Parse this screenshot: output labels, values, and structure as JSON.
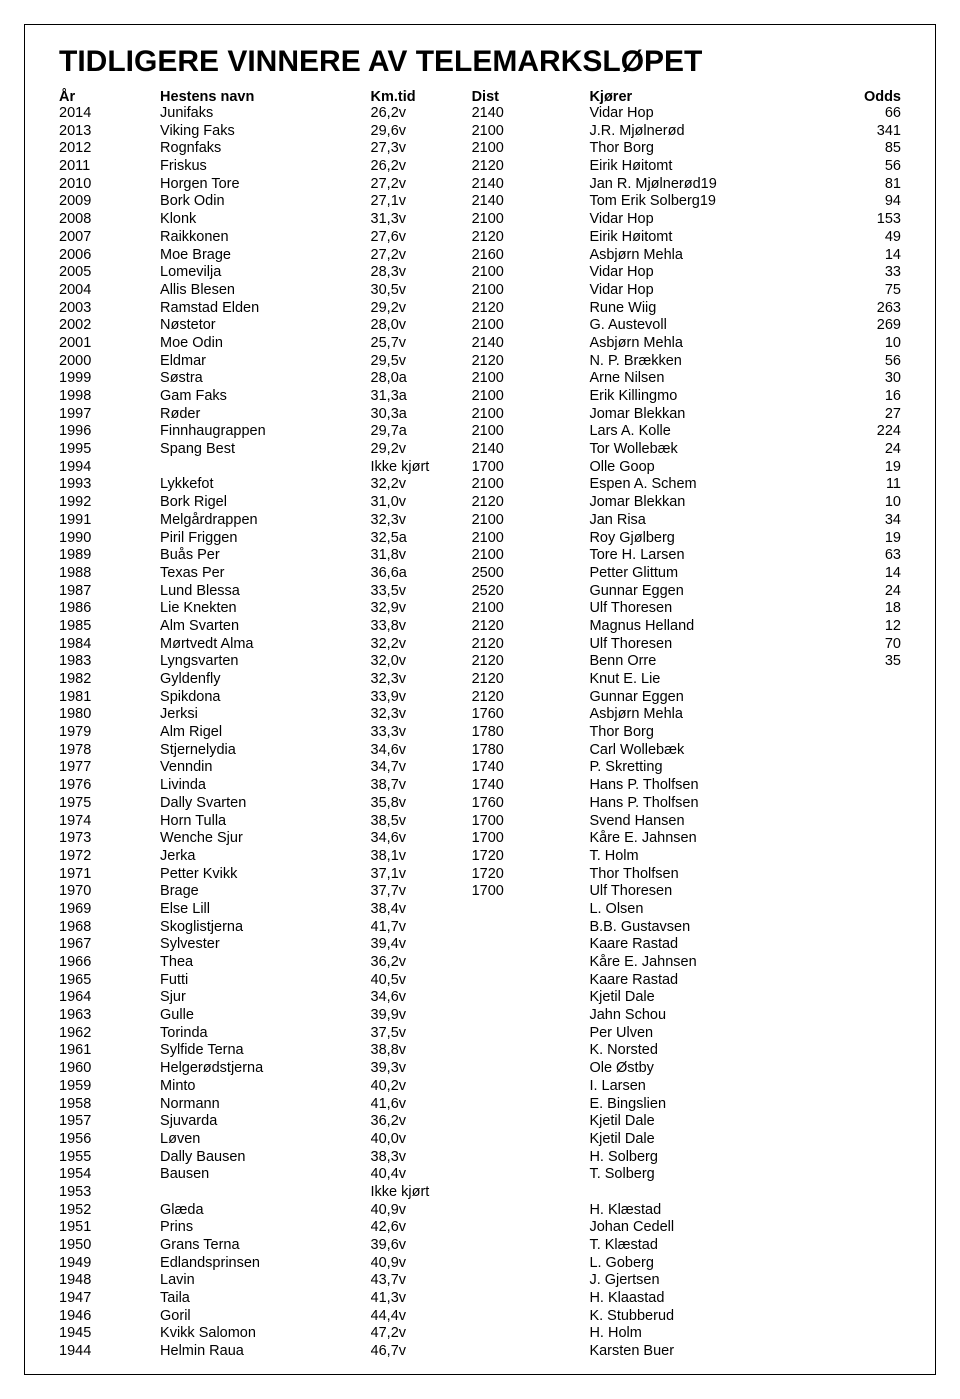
{
  "title": "TIDLIGERE VINNERE AV TELEMARKSLØPET",
  "columns": {
    "year": "År",
    "horse": "Hestens navn",
    "km": "Km.tid",
    "dist": "Dist",
    "driver": "Kjører",
    "odds": "Odds"
  },
  "rows": [
    {
      "year": "2014",
      "horse": "Junifaks",
      "km": "26,2v",
      "dist": "2140",
      "driver": "Vidar Hop",
      "odds": "66"
    },
    {
      "year": "2013",
      "horse": "Viking Faks",
      "km": "29,6v",
      "dist": "2100",
      "driver": "J.R. Mjølnerød",
      "odds": "341"
    },
    {
      "year": "2012",
      "horse": "Rognfaks",
      "km": "27,3v",
      "dist": "2100",
      "driver": "Thor Borg",
      "odds": "85"
    },
    {
      "year": "2011",
      "horse": "Friskus",
      "km": "26,2v",
      "dist": "2120",
      "driver": "Eirik Høitomt",
      "odds": "56"
    },
    {
      "year": "2010",
      "horse": "Horgen Tore",
      "km": "27,2v",
      "dist": "2140",
      "driver": "Jan R. Mjølnerød19",
      "odds": "81"
    },
    {
      "year": "2009",
      "horse": "Bork Odin",
      "km": "27,1v",
      "dist": "2140",
      "driver": "Tom Erik Solberg19",
      "odds": "94"
    },
    {
      "year": "2008",
      "horse": "Klonk",
      "km": "31,3v",
      "dist": "2100",
      "driver": "Vidar Hop",
      "odds": "153"
    },
    {
      "year": "2007",
      "horse": "Raikkonen",
      "km": "27,6v",
      "dist": "2120",
      "driver": "Eirik Høitomt",
      "odds": "49"
    },
    {
      "year": "2006",
      "horse": "Moe Brage",
      "km": "27,2v",
      "dist": "2160",
      "driver": "Asbjørn Mehla",
      "odds": "14"
    },
    {
      "year": "2005",
      "horse": "Lomevilja",
      "km": "28,3v",
      "dist": "2100",
      "driver": "Vidar Hop",
      "odds": "33"
    },
    {
      "year": "2004",
      "horse": "Allis Blesen",
      "km": "30,5v",
      "dist": "2100",
      "driver": "Vidar Hop",
      "odds": "75"
    },
    {
      "year": "2003",
      "horse": "Ramstad Elden",
      "km": "29,2v",
      "dist": "2120",
      "driver": "Rune Wiig",
      "odds": "263"
    },
    {
      "year": "2002",
      "horse": "Nøstetor",
      "km": "28,0v",
      "dist": "2100",
      "driver": "G. Austevoll",
      "odds": "269"
    },
    {
      "year": "2001",
      "horse": "Moe Odin",
      "km": "25,7v",
      "dist": "2140",
      "driver": "Asbjørn Mehla",
      "odds": "10"
    },
    {
      "year": "2000",
      "horse": "Eldmar",
      "km": "29,5v",
      "dist": "2120",
      "driver": "N. P. Brækken",
      "odds": "56"
    },
    {
      "year": "1999",
      "horse": "Søstra",
      "km": "28,0a",
      "dist": "2100",
      "driver": "Arne Nilsen",
      "odds": "30"
    },
    {
      "year": "1998",
      "horse": "Gam Faks",
      "km": "31,3a",
      "dist": "2100",
      "driver": "Erik Killingmo",
      "odds": "16"
    },
    {
      "year": "1997",
      "horse": "Røder",
      "km": "30,3a",
      "dist": "2100",
      "driver": "Jomar Blekkan",
      "odds": "27"
    },
    {
      "year": "1996",
      "horse": "Finnhaugrappen",
      "km": "29,7a",
      "dist": "2100",
      "driver": "Lars A. Kolle",
      "odds": "224"
    },
    {
      "year": "1995",
      "horse": "Spang Best",
      "km": "29,2v",
      "dist": "2140",
      "driver": "Tor Wollebæk",
      "odds": "24"
    },
    {
      "year": "1994",
      "horse": "",
      "km": "Ikke kjørt",
      "dist": "1700",
      "driver": "Olle Goop",
      "odds": "19"
    },
    {
      "year": "1993",
      "horse": "Lykkefot",
      "km": "32,2v",
      "dist": "2100",
      "driver": "Espen A. Schem",
      "odds": "11"
    },
    {
      "year": "1992",
      "horse": "Bork Rigel",
      "km": "31,0v",
      "dist": "2120",
      "driver": "Jomar Blekkan",
      "odds": "10"
    },
    {
      "year": "1991",
      "horse": "Melgårdrappen",
      "km": "32,3v",
      "dist": "2100",
      "driver": "Jan Risa",
      "odds": "34"
    },
    {
      "year": "1990",
      "horse": "Piril Friggen",
      "km": "32,5a",
      "dist": "2100",
      "driver": "Roy Gjølberg",
      "odds": "19"
    },
    {
      "year": "1989",
      "horse": "Buås Per",
      "km": "31,8v",
      "dist": "2100",
      "driver": "Tore H. Larsen",
      "odds": "63"
    },
    {
      "year": "1988",
      "horse": "Texas Per",
      "km": "36,6a",
      "dist": "2500",
      "driver": "Petter Glittum",
      "odds": "14"
    },
    {
      "year": "1987",
      "horse": "Lund Blessa",
      "km": "33,5v",
      "dist": "2520",
      "driver": "Gunnar Eggen",
      "odds": "24"
    },
    {
      "year": "1986",
      "horse": "Lie Knekten",
      "km": "32,9v",
      "dist": "2100",
      "driver": "Ulf Thoresen",
      "odds": "18"
    },
    {
      "year": "1985",
      "horse": "Alm Svarten",
      "km": "33,8v",
      "dist": "2120",
      "driver": "Magnus Helland",
      "odds": "12"
    },
    {
      "year": "1984",
      "horse": "Mørtvedt Alma",
      "km": "32,2v",
      "dist": "2120",
      "driver": "Ulf Thoresen",
      "odds": "70"
    },
    {
      "year": "1983",
      "horse": "Lyngsvarten",
      "km": "32,0v",
      "dist": "2120",
      "driver": "Benn Orre",
      "odds": "35"
    },
    {
      "year": "1982",
      "horse": "Gyldenfly",
      "km": "32,3v",
      "dist": "2120",
      "driver": "Knut E. Lie",
      "odds": ""
    },
    {
      "year": "1981",
      "horse": "Spikdona",
      "km": "33,9v",
      "dist": "2120",
      "driver": "Gunnar Eggen",
      "odds": ""
    },
    {
      "year": "1980",
      "horse": "Jerksi",
      "km": "32,3v",
      "dist": "1760",
      "driver": "Asbjørn Mehla",
      "odds": ""
    },
    {
      "year": "1979",
      "horse": "Alm Rigel",
      "km": "33,3v",
      "dist": "1780",
      "driver": "Thor Borg",
      "odds": ""
    },
    {
      "year": "1978",
      "horse": "Stjernelydia",
      "km": "34,6v",
      "dist": "1780",
      "driver": "Carl Wollebæk",
      "odds": ""
    },
    {
      "year": "1977",
      "horse": "Venndin",
      "km": "34,7v",
      "dist": "1740",
      "driver": "P. Skretting",
      "odds": ""
    },
    {
      "year": "1976",
      "horse": "Livinda",
      "km": "38,7v",
      "dist": "1740",
      "driver": "Hans P. Tholfsen",
      "odds": ""
    },
    {
      "year": "1975",
      "horse": "Dally Svarten",
      "km": "35,8v",
      "dist": "1760",
      "driver": "Hans P. Tholfsen",
      "odds": ""
    },
    {
      "year": "1974",
      "horse": "Horn Tulla",
      "km": "38,5v",
      "dist": "1700",
      "driver": "Svend Hansen",
      "odds": ""
    },
    {
      "year": "1973",
      "horse": "Wenche Sjur",
      "km": "34,6v",
      "dist": "1700",
      "driver": "Kåre E. Jahnsen",
      "odds": ""
    },
    {
      "year": "1972",
      "horse": "Jerka",
      "km": "38,1v",
      "dist": "1720",
      "driver": "T. Holm",
      "odds": ""
    },
    {
      "year": "1971",
      "horse": "Petter Kvikk",
      "km": "37,1v",
      "dist": "1720",
      "driver": "Thor Tholfsen",
      "odds": ""
    },
    {
      "year": "1970",
      "horse": "Brage",
      "km": "37,7v",
      "dist": "1700",
      "driver": "Ulf Thoresen",
      "odds": ""
    },
    {
      "year": "1969",
      "horse": "Else Lill",
      "km": "38,4v",
      "dist": "",
      "driver": "L. Olsen",
      "odds": ""
    },
    {
      "year": "1968",
      "horse": "Skoglistjerna",
      "km": "41,7v",
      "dist": "",
      "driver": "B.B. Gustavsen",
      "odds": ""
    },
    {
      "year": "1967",
      "horse": "Sylvester",
      "km": "39,4v",
      "dist": "",
      "driver": "Kaare Rastad",
      "odds": ""
    },
    {
      "year": "1966",
      "horse": "Thea",
      "km": "36,2v",
      "dist": "",
      "driver": "Kåre E. Jahnsen",
      "odds": ""
    },
    {
      "year": "1965",
      "horse": "Futti",
      "km": "40,5v",
      "dist": "",
      "driver": "Kaare Rastad",
      "odds": ""
    },
    {
      "year": "1964",
      "horse": "Sjur",
      "km": "34,6v",
      "dist": "",
      "driver": "Kjetil Dale",
      "odds": ""
    },
    {
      "year": "1963",
      "horse": "Gulle",
      "km": "39,9v",
      "dist": "",
      "driver": "Jahn Schou",
      "odds": ""
    },
    {
      "year": "1962",
      "horse": "Torinda",
      "km": "37,5v",
      "dist": "",
      "driver": "Per Ulven",
      "odds": ""
    },
    {
      "year": "1961",
      "horse": "Sylfide Terna",
      "km": "38,8v",
      "dist": "",
      "driver": "K. Norsted",
      "odds": ""
    },
    {
      "year": "1960",
      "horse": "Helgerødstjerna",
      "km": "39,3v",
      "dist": "",
      "driver": "Ole Østby",
      "odds": ""
    },
    {
      "year": "1959",
      "horse": "Minto",
      "km": "40,2v",
      "dist": "",
      "driver": "I. Larsen",
      "odds": ""
    },
    {
      "year": "1958",
      "horse": "Normann",
      "km": "41,6v",
      "dist": "",
      "driver": "E. Bingslien",
      "odds": ""
    },
    {
      "year": "1957",
      "horse": "Sjuvarda",
      "km": "36,2v",
      "dist": "",
      "driver": "Kjetil Dale",
      "odds": ""
    },
    {
      "year": "1956",
      "horse": "Løven",
      "km": "40,0v",
      "dist": "",
      "driver": "Kjetil Dale",
      "odds": ""
    },
    {
      "year": "1955",
      "horse": "Dally Bausen",
      "km": "38,3v",
      "dist": "",
      "driver": "H. Solberg",
      "odds": ""
    },
    {
      "year": "1954",
      "horse": "Bausen",
      "km": "40,4v",
      "dist": "",
      "driver": "T. Solberg",
      "odds": ""
    },
    {
      "year": "1953",
      "horse": "",
      "km": "Ikke kjørt",
      "dist": "",
      "driver": "",
      "odds": ""
    },
    {
      "year": "1952",
      "horse": "Glæda",
      "km": "40,9v",
      "dist": "",
      "driver": "H. Klæstad",
      "odds": ""
    },
    {
      "year": "1951",
      "horse": "Prins",
      "km": "42,6v",
      "dist": "",
      "driver": "Johan Cedell",
      "odds": ""
    },
    {
      "year": "1950",
      "horse": "Grans Terna",
      "km": "39,6v",
      "dist": "",
      "driver": "T. Klæstad",
      "odds": ""
    },
    {
      "year": "1949",
      "horse": "Edlandsprinsen",
      "km": "40,9v",
      "dist": "",
      "driver": "L. Goberg",
      "odds": ""
    },
    {
      "year": "1948",
      "horse": "Lavin",
      "km": "43,7v",
      "dist": "",
      "driver": "J. Gjertsen",
      "odds": ""
    },
    {
      "year": "1947",
      "horse": "Taila",
      "km": "41,3v",
      "dist": "",
      "driver": "H. Klaastad",
      "odds": ""
    },
    {
      "year": "1946",
      "horse": "Goril",
      "km": "44,4v",
      "dist": "",
      "driver": "K. Stubberud",
      "odds": ""
    },
    {
      "year": "1945",
      "horse": "Kvikk Salomon",
      "km": "47,2v",
      "dist": "",
      "driver": "H. Holm",
      "odds": ""
    },
    {
      "year": "1944",
      "horse": "Helmin Raua",
      "km": "46,7v",
      "dist": "",
      "driver": "Karsten Buer",
      "odds": ""
    }
  ]
}
